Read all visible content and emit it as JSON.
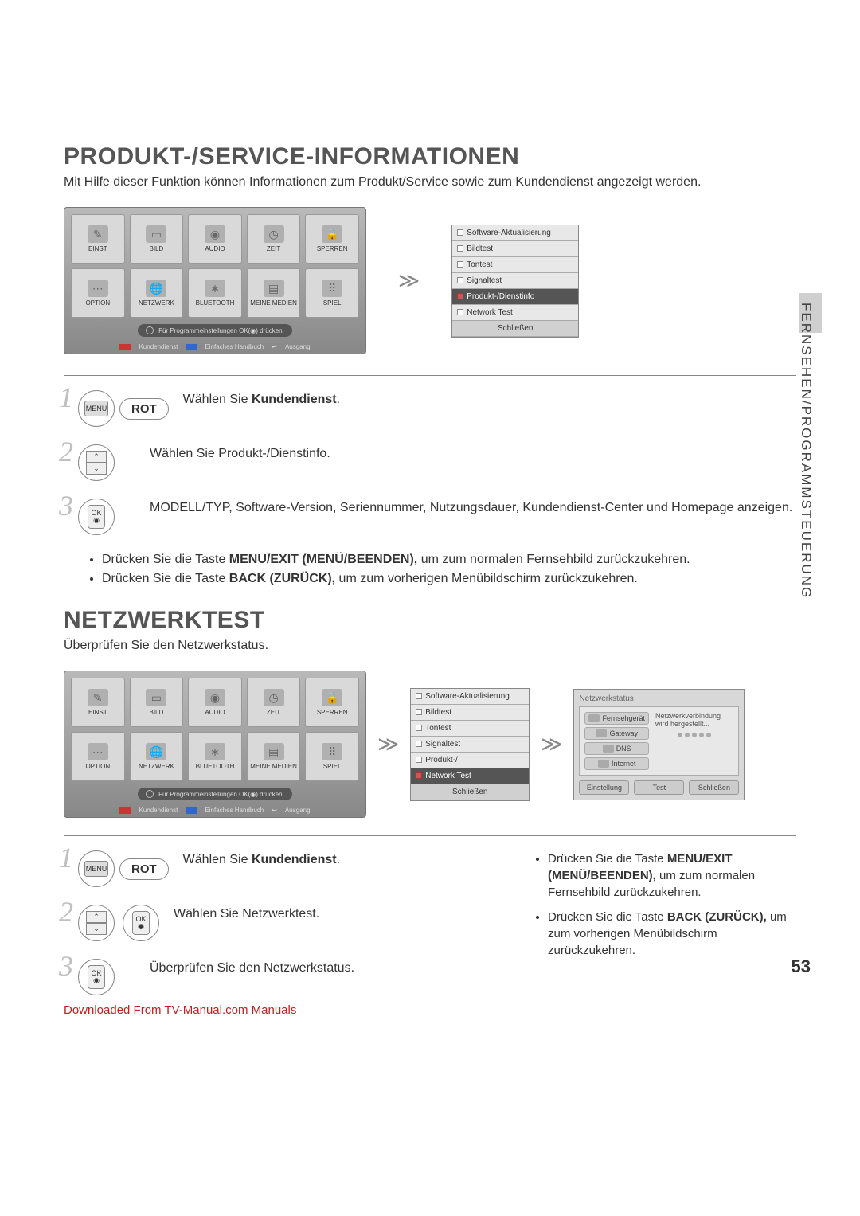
{
  "side_label": "FERNSEHEN/PROGRAMMSTEUERUNG",
  "page_number": "53",
  "download_text": "Downloaded From TV-Manual.com Manuals",
  "section1": {
    "title": "PRODUKT-/SERVICE-INFORMATIONEN",
    "subtitle": "Mit Hilfe dieser Funktion können Informationen zum Produkt/Service sowie zum Kundendienst angezeigt werden."
  },
  "section2": {
    "title": "NETZWERKTEST",
    "subtitle": "Überprüfen Sie den Netzwerkstatus."
  },
  "tvmenu": {
    "items": [
      {
        "label": "EINST",
        "icon": "✎"
      },
      {
        "label": "BILD",
        "icon": "▭"
      },
      {
        "label": "AUDIO",
        "icon": "◉"
      },
      {
        "label": "ZEIT",
        "icon": "◷"
      },
      {
        "label": "SPERREN",
        "icon": "🔒"
      },
      {
        "label": "OPTION",
        "icon": "⋯"
      },
      {
        "label": "NETZWERK",
        "icon": "🌐"
      },
      {
        "label": "BLUETOOTH",
        "icon": "∗"
      },
      {
        "label": "MEINE MEDIEN",
        "icon": "▤"
      },
      {
        "label": "SPIEL",
        "icon": "⠿"
      }
    ],
    "hint": "Für Programmeinstellungen OK(◉) drücken.",
    "footer1": "Kundendienst",
    "footer2": "Einfaches Handbuch",
    "footer3": "Ausgang"
  },
  "cs_list": {
    "items": [
      "Software-Aktualisierung",
      "Bildtest",
      "Tontest",
      "Signaltest",
      "Produkt-/Dienstinfo",
      "Network Test"
    ],
    "close": "Schließen",
    "selected_index_s1": 4,
    "selected_index_s2": 5,
    "s2_item4": "Produkt-/"
  },
  "net_status": {
    "title": "Netzwerkstatus",
    "nodes": [
      "Fernsehgerät",
      "Gateway",
      "DNS",
      "Internet"
    ],
    "msg1": "Netzwerkverbindung",
    "msg2": "wird hergestellt...",
    "buttons": [
      "Einstellung",
      "Test",
      "Schließen"
    ]
  },
  "remote": {
    "menu": "MENU",
    "ok": "OK",
    "rot": "ROT"
  },
  "steps_s1": {
    "s1_a": "Wählen Sie ",
    "s1_b": "Kundendienst",
    "s2": "Wählen Sie Produkt-/Dienstinfo.",
    "s3": "MODELL/TYP, Software-Version, Seriennummer, Nutzungsdauer, Kundendienst-Center und Homepage anzeigen."
  },
  "notes_s1": {
    "n1_a": "Drücken Sie die Taste ",
    "n1_b": "MENU/EXIT (MENÜ/BEENDEN),",
    "n1_c": " um zum normalen Fernsehbild zurückzukehren.",
    "n2_a": "Drücken Sie die Taste ",
    "n2_b": "BACK (ZURÜCK),",
    "n2_c": " um zum vorherigen Menübildschirm zurückzukehren."
  },
  "steps_s2": {
    "s1_a": "Wählen Sie ",
    "s1_b": "Kundendienst",
    "s2": "Wählen Sie Netzwerktest.",
    "s3": "Überprüfen Sie den Netzwerkstatus."
  },
  "notes_s2": {
    "n1_a": "Drücken Sie die Taste ",
    "n1_b": "MENU/EXIT (MENÜ/BEENDEN),",
    "n1_c": " um zum normalen Fernsehbild zurückzukehren.",
    "n2_a": "Drücken Sie die Taste ",
    "n2_b": "BACK (ZURÜCK),",
    "n2_c": " um zum vorherigen Menübildschirm zurückzukehren."
  },
  "period": "."
}
